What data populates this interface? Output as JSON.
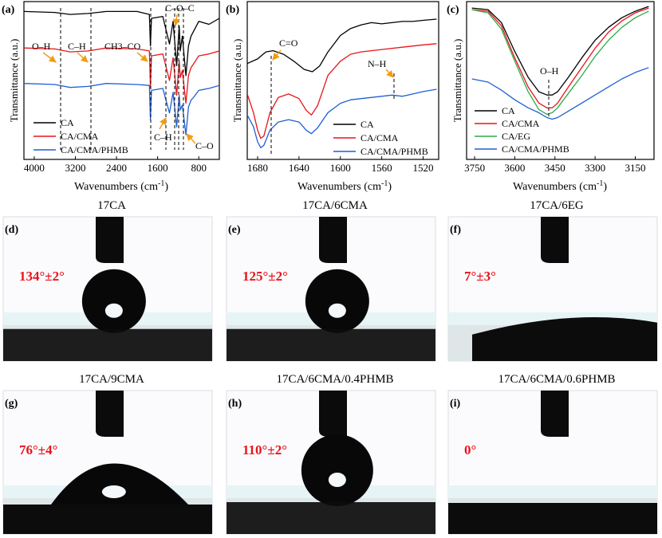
{
  "figure": {
    "panel_a": {
      "letter": "(a)",
      "ylabel": "Transmittance (a.u.)",
      "xlabel_main": "Wavenumbers (cm",
      "xlabel_sup": "-1",
      "xlabel_close": ")",
      "xticks": [
        "4000",
        "3200",
        "2400",
        "1600",
        "800"
      ],
      "annotations": {
        "oh": "O–H",
        "ch": "C–H",
        "ch3co": "CH3–CO",
        "coc": "C–O–C",
        "ch2": "C–H",
        "co": "C–O"
      },
      "legend": [
        "CA",
        "CA/CMA",
        "CA/CMA/PHMB"
      ]
    },
    "panel_b": {
      "letter": "(b)",
      "ylabel": "Transmittance (a.u.)",
      "xlabel_main": "Wavenumbers (cm",
      "xlabel_sup": "-1",
      "xlabel_close": ")",
      "xticks": [
        "1680",
        "1640",
        "1600",
        "1560",
        "1520"
      ],
      "annotations": {
        "co": "C=O",
        "nh": "N–H"
      },
      "legend": [
        "CA",
        "CA/CMA",
        "CA/CMA/PHMB"
      ]
    },
    "panel_c": {
      "letter": "(c)",
      "ylabel": "Transmittance (a.u.)",
      "xlabel_main": "Wavenumbers (cm",
      "xlabel_sup": "-1",
      "xlabel_close": ")",
      "xticks": [
        "3750",
        "3600",
        "3450",
        "3300",
        "3150"
      ],
      "annotations": {
        "oh": "O–H"
      },
      "legend": [
        "CA",
        "CA/CMA",
        "CA/EG",
        "CA/CMA/PHMB"
      ]
    },
    "photos": [
      {
        "letter": "(d)",
        "title": "17CA",
        "angle": "134°±2°",
        "shape": "sphere"
      },
      {
        "letter": "(e)",
        "title": "17CA/6CMA",
        "angle": "125°±2°",
        "shape": "sphere"
      },
      {
        "letter": "(f)",
        "title": "17CA/6EG",
        "angle": "7°±3°",
        "shape": "flat"
      },
      {
        "letter": "(g)",
        "title": "17CA/9CMA",
        "angle": "76°±4°",
        "shape": "dome"
      },
      {
        "letter": "(h)",
        "title": "17CA/6CMA/0.4PHMB",
        "angle": "110°±2°",
        "shape": "sphere2"
      },
      {
        "letter": "(i)",
        "title": "17CA/6CMA/0.6PHMB",
        "angle": "0°",
        "shape": "none"
      }
    ]
  },
  "chart_data": [
    {
      "type": "line",
      "title": "(a)",
      "xlabel": "Wavenumbers (cm-1)",
      "ylabel": "Transmittance (a.u.)",
      "xlim": [
        4200,
        400
      ],
      "x_reversed": true,
      "yaxis_ticks": "none",
      "series": [
        {
          "name": "CA",
          "color": "#000000",
          "points": [
            [
              4200,
              0.95
            ],
            [
              3600,
              0.94
            ],
            [
              3300,
              0.92
            ],
            [
              2950,
              0.93
            ],
            [
              2600,
              0.95
            ],
            [
              2000,
              0.95
            ],
            [
              1760,
              0.92
            ],
            [
              1740,
              0.6
            ],
            [
              1720,
              0.88
            ],
            [
              1500,
              0.9
            ],
            [
              1370,
              0.62
            ],
            [
              1300,
              0.85
            ],
            [
              1230,
              0.4
            ],
            [
              1180,
              0.8
            ],
            [
              1160,
              0.55
            ],
            [
              1120,
              0.7
            ],
            [
              1050,
              0.3
            ],
            [
              1000,
              0.6
            ],
            [
              950,
              0.7
            ],
            [
              900,
              0.75
            ],
            [
              800,
              0.85
            ],
            [
              600,
              0.82
            ],
            [
              400,
              0.88
            ]
          ]
        },
        {
          "name": "CA/CMA",
          "color": "#e8141b",
          "points": [
            [
              4200,
              0.58
            ],
            [
              3600,
              0.57
            ],
            [
              3300,
              0.54
            ],
            [
              2950,
              0.55
            ],
            [
              2600,
              0.58
            ],
            [
              2000,
              0.57
            ],
            [
              1760,
              0.55
            ],
            [
              1740,
              0.18
            ],
            [
              1720,
              0.5
            ],
            [
              1500,
              0.52
            ],
            [
              1370,
              0.25
            ],
            [
              1300,
              0.48
            ],
            [
              1230,
              0.1
            ],
            [
              1180,
              0.45
            ],
            [
              1160,
              0.28
            ],
            [
              1120,
              0.35
            ],
            [
              1050,
              0.02
            ],
            [
              1000,
              0.3
            ],
            [
              950,
              0.38
            ],
            [
              900,
              0.42
            ],
            [
              800,
              0.5
            ],
            [
              600,
              0.52
            ],
            [
              400,
              0.55
            ]
          ]
        },
        {
          "name": "CA/CMA/PHMB",
          "color": "#1f5fd6",
          "points": [
            [
              4200,
              0.22
            ],
            [
              3600,
              0.21
            ],
            [
              3300,
              0.18
            ],
            [
              2950,
              0.19
            ],
            [
              2600,
              0.22
            ],
            [
              2000,
              0.21
            ],
            [
              1760,
              0.2
            ],
            [
              1740,
              -0.15
            ],
            [
              1720,
              0.15
            ],
            [
              1500,
              0.17
            ],
            [
              1370,
              -0.08
            ],
            [
              1300,
              0.13
            ],
            [
              1230,
              -0.22
            ],
            [
              1180,
              0.1
            ],
            [
              1160,
              -0.05
            ],
            [
              1120,
              0.0
            ],
            [
              1050,
              -0.3
            ],
            [
              1000,
              -0.02
            ],
            [
              950,
              0.05
            ],
            [
              900,
              0.08
            ],
            [
              800,
              0.15
            ],
            [
              600,
              0.17
            ],
            [
              400,
              0.2
            ]
          ]
        }
      ]
    },
    {
      "type": "line",
      "title": "(b)",
      "xlabel": "Wavenumbers (cm-1)",
      "ylabel": "Transmittance (a.u.)",
      "xlim": [
        1690,
        1505
      ],
      "x_reversed": true,
      "yaxis_ticks": "none",
      "series": [
        {
          "name": "CA",
          "color": "#000000",
          "points": [
            [
              1690,
              0.62
            ],
            [
              1680,
              0.66
            ],
            [
              1672,
              0.72
            ],
            [
              1665,
              0.73
            ],
            [
              1655,
              0.7
            ],
            [
              1645,
              0.64
            ],
            [
              1635,
              0.57
            ],
            [
              1627,
              0.55
            ],
            [
              1620,
              0.6
            ],
            [
              1612,
              0.72
            ],
            [
              1600,
              0.86
            ],
            [
              1590,
              0.92
            ],
            [
              1580,
              0.95
            ],
            [
              1570,
              0.97
            ],
            [
              1560,
              0.96
            ],
            [
              1550,
              0.97
            ],
            [
              1540,
              0.98
            ],
            [
              1530,
              0.98
            ],
            [
              1520,
              0.99
            ],
            [
              1507,
              1.0
            ]
          ]
        },
        {
          "name": "CA/CMA",
          "color": "#e8141b",
          "points": [
            [
              1690,
              0.36
            ],
            [
              1684,
              0.2
            ],
            [
              1680,
              0.05
            ],
            [
              1677,
              -0.02
            ],
            [
              1674,
              0.0
            ],
            [
              1668,
              0.2
            ],
            [
              1660,
              0.33
            ],
            [
              1650,
              0.36
            ],
            [
              1640,
              0.32
            ],
            [
              1633,
              0.22
            ],
            [
              1628,
              0.18
            ],
            [
              1622,
              0.26
            ],
            [
              1612,
              0.52
            ],
            [
              1600,
              0.64
            ],
            [
              1590,
              0.7
            ],
            [
              1580,
              0.72
            ],
            [
              1560,
              0.74
            ],
            [
              1540,
              0.76
            ],
            [
              1520,
              0.78
            ],
            [
              1507,
              0.79
            ]
          ]
        },
        {
          "name": "CA/CMA/PHMB",
          "color": "#1f5fd6",
          "points": [
            [
              1690,
              0.18
            ],
            [
              1684,
              0.08
            ],
            [
              1680,
              -0.05
            ],
            [
              1677,
              -0.1
            ],
            [
              1674,
              -0.08
            ],
            [
              1668,
              0.05
            ],
            [
              1660,
              0.12
            ],
            [
              1650,
              0.14
            ],
            [
              1640,
              0.12
            ],
            [
              1633,
              0.05
            ],
            [
              1628,
              0.02
            ],
            [
              1622,
              0.07
            ],
            [
              1612,
              0.2
            ],
            [
              1600,
              0.28
            ],
            [
              1590,
              0.31
            ],
            [
              1580,
              0.32
            ],
            [
              1560,
              0.34
            ],
            [
              1550,
              0.35
            ],
            [
              1540,
              0.34
            ],
            [
              1530,
              0.36
            ],
            [
              1520,
              0.38
            ],
            [
              1507,
              0.4
            ]
          ]
        }
      ]
    },
    {
      "type": "line",
      "title": "(c)",
      "xlabel": "Wavenumbers (cm-1)",
      "ylabel": "Transmittance (a.u.)",
      "xlim": [
        3780,
        3080
      ],
      "x_reversed": true,
      "yaxis_ticks": "none",
      "series": [
        {
          "name": "CA",
          "color": "#000000",
          "points": [
            [
              3760,
              0.99
            ],
            [
              3700,
              0.98
            ],
            [
              3650,
              0.9
            ],
            [
              3600,
              0.72
            ],
            [
              3550,
              0.56
            ],
            [
              3510,
              0.47
            ],
            [
              3480,
              0.45
            ],
            [
              3460,
              0.45
            ],
            [
              3440,
              0.47
            ],
            [
              3400,
              0.56
            ],
            [
              3350,
              0.68
            ],
            [
              3300,
              0.79
            ],
            [
              3250,
              0.87
            ],
            [
              3200,
              0.93
            ],
            [
              3150,
              0.97
            ],
            [
              3100,
              1.0
            ]
          ]
        },
        {
          "name": "CA/CMA",
          "color": "#e8141b",
          "points": [
            [
              3760,
              0.98
            ],
            [
              3700,
              0.97
            ],
            [
              3650,
              0.88
            ],
            [
              3600,
              0.68
            ],
            [
              3550,
              0.5
            ],
            [
              3510,
              0.4
            ],
            [
              3480,
              0.37
            ],
            [
              3460,
              0.37
            ],
            [
              3440,
              0.4
            ],
            [
              3400,
              0.5
            ],
            [
              3350,
              0.62
            ],
            [
              3300,
              0.74
            ],
            [
              3250,
              0.84
            ],
            [
              3200,
              0.91
            ],
            [
              3150,
              0.96
            ],
            [
              3100,
              0.99
            ]
          ]
        },
        {
          "name": "CA/EG",
          "color": "#2eaa4a",
          "points": [
            [
              3760,
              0.98
            ],
            [
              3700,
              0.96
            ],
            [
              3650,
              0.86
            ],
            [
              3600,
              0.66
            ],
            [
              3550,
              0.47
            ],
            [
              3510,
              0.36
            ],
            [
              3480,
              0.33
            ],
            [
              3460,
              0.34
            ],
            [
              3440,
              0.37
            ],
            [
              3400,
              0.46
            ],
            [
              3350,
              0.57
            ],
            [
              3300,
              0.69
            ],
            [
              3250,
              0.79
            ],
            [
              3200,
              0.87
            ],
            [
              3150,
              0.93
            ],
            [
              3100,
              0.97
            ]
          ]
        },
        {
          "name": "CA/CMA/PHMB",
          "color": "#1f5fd6",
          "points": [
            [
              3760,
              0.55
            ],
            [
              3700,
              0.53
            ],
            [
              3650,
              0.48
            ],
            [
              3600,
              0.42
            ],
            [
              3550,
              0.37
            ],
            [
              3510,
              0.34
            ],
            [
              3480,
              0.31
            ],
            [
              3460,
              0.3
            ],
            [
              3440,
              0.31
            ],
            [
              3400,
              0.35
            ],
            [
              3350,
              0.4
            ],
            [
              3300,
              0.45
            ],
            [
              3250,
              0.5
            ],
            [
              3200,
              0.55
            ],
            [
              3150,
              0.59
            ],
            [
              3100,
              0.62
            ]
          ]
        }
      ]
    }
  ]
}
